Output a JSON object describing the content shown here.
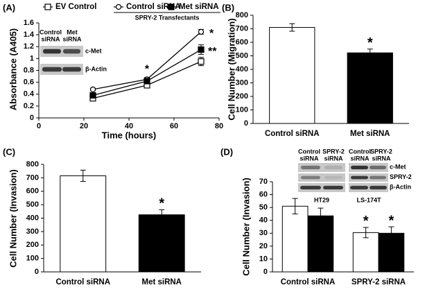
{
  "chart_data": [
    {
      "type": "line",
      "label": "(A)",
      "x_label": "Time (hours)",
      "y_label": "Absorbance (A405)",
      "x": [
        24,
        48,
        72
      ],
      "xlim": [
        0,
        80
      ],
      "xticks": [
        0,
        20,
        40,
        60,
        80
      ],
      "ylim": [
        0,
        1.6
      ],
      "yticks": [
        0,
        0.2,
        0.4,
        0.6,
        0.8,
        1,
        1.2,
        1.4,
        1.6
      ],
      "legend_group_label": "SPRY-2 Transfectants",
      "series": [
        {
          "name": "EV Control",
          "color": "#000000",
          "marker": "open-square",
          "values": [
            0.33,
            0.55,
            0.95
          ],
          "errors": [
            0.03,
            0.03,
            0.07
          ]
        },
        {
          "name": "Control siRNA",
          "color": "#000000",
          "marker": "open-circle",
          "values": [
            0.48,
            0.65,
            1.45
          ],
          "errors": [
            0.02,
            0.03,
            0.04
          ]
        },
        {
          "name": "Met siRNA",
          "color": "#000000",
          "marker": "filled-square",
          "values": [
            0.38,
            0.62,
            1.15
          ],
          "errors": [
            0.03,
            0.03,
            0.08
          ]
        }
      ],
      "annotations": [
        "*",
        "*",
        "**"
      ],
      "inset": {
        "lanes": [
          [
            "Control",
            "siRNA"
          ],
          [
            "Met",
            "siRNA"
          ]
        ],
        "rows": [
          "c-Met",
          "β-Actin"
        ]
      }
    },
    {
      "type": "bar",
      "label": "(B)",
      "y_label": "Cell Number (Migration)",
      "categories": [
        "Control siRNA",
        "Met siRNA"
      ],
      "values": [
        710,
        522
      ],
      "errors": [
        28,
        28
      ],
      "colors": [
        "#ffffff",
        "#000000"
      ],
      "ylim": [
        0,
        800
      ],
      "yticks": [
        0,
        100,
        200,
        300,
        400,
        500,
        600,
        700,
        800
      ],
      "annotation": "*"
    },
    {
      "type": "bar",
      "label": "(C)",
      "y_label": "Cell Number (Invasion)",
      "categories": [
        "Control siRNA",
        "Met siRNA"
      ],
      "values": [
        715,
        425
      ],
      "errors": [
        42,
        38
      ],
      "colors": [
        "#ffffff",
        "#000000"
      ],
      "ylim": [
        0,
        800
      ],
      "yticks": [
        0,
        100,
        200,
        300,
        400,
        500,
        600,
        700,
        800
      ],
      "annotation": "*"
    },
    {
      "type": "grouped-bar",
      "label": "(D)",
      "y_label": "Cell Number (Invasion)",
      "categories": [
        "Control siRNA",
        "SPRY-2 siRNA"
      ],
      "series": [
        {
          "color": "#ffffff",
          "values": [
            51,
            30.5
          ],
          "errors": [
            6,
            4
          ]
        },
        {
          "color": "#000000",
          "values": [
            43.5,
            30
          ],
          "errors": [
            6,
            5
          ]
        }
      ],
      "ylim": [
        0,
        70
      ],
      "yticks": [
        0,
        10,
        20,
        30,
        40,
        50,
        60,
        70
      ],
      "annotations": [
        "*",
        "*"
      ],
      "inset": {
        "lanes": [
          [
            "Control",
            "siRNA"
          ],
          [
            "SPRY-2",
            "siRNA"
          ],
          [
            "Control",
            "siRNA"
          ],
          [
            "SPRY-2",
            "siRNA"
          ]
        ],
        "rows": [
          "c-Met",
          "SPRY-2",
          "β-Actin"
        ],
        "cell_lines": [
          "HT29",
          "LS-174T"
        ]
      }
    }
  ]
}
